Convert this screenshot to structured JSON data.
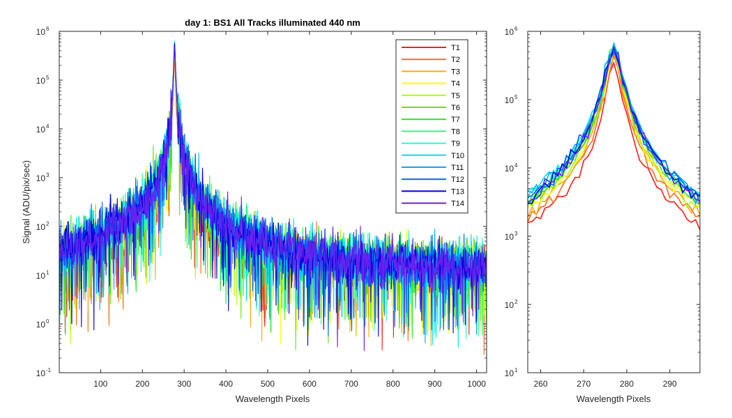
{
  "chart_data": [
    {
      "type": "line",
      "title": "day 1: BS1   All Tracks illuminated   440 nm",
      "xlabel": "Wavelength Pixels",
      "ylabel": "Signal (ADU/pix/sec)",
      "xlim": [
        1,
        1024
      ],
      "ylim": [
        0.1,
        1000000
      ],
      "yscale": "log",
      "xticks": [
        100,
        200,
        300,
        400,
        500,
        600,
        700,
        800,
        900,
        1000
      ],
      "yticks": [
        0.1,
        1,
        10,
        100,
        1000,
        10000,
        100000,
        1000000
      ],
      "ytick_mantissa": "10",
      "ytick_exponents": [
        "-1",
        "0",
        "1",
        "2",
        "3",
        "4",
        "5",
        "6"
      ],
      "legend": "top-right",
      "grid": false,
      "peak": {
        "x": 277,
        "value": 600000
      },
      "series": [
        {
          "name": "T1",
          "color": "#ff1a1a",
          "peak": 340000
        },
        {
          "name": "T2",
          "color": "#ff6a1a",
          "peak": 420000
        },
        {
          "name": "T3",
          "color": "#ffaa00",
          "peak": 480000
        },
        {
          "name": "T4",
          "color": "#ffff00",
          "peak": 520000
        },
        {
          "name": "T5",
          "color": "#b0ff00",
          "peak": 540000
        },
        {
          "name": "T6",
          "color": "#66e600",
          "peak": 560000
        },
        {
          "name": "T7",
          "color": "#22e622",
          "peak": 580000
        },
        {
          "name": "T8",
          "color": "#22ff88",
          "peak": 600000
        },
        {
          "name": "T9",
          "color": "#22ffcc",
          "peak": 620000
        },
        {
          "name": "T10",
          "color": "#00e6e6",
          "peak": 640000
        },
        {
          "name": "T11",
          "color": "#00aaff",
          "peak": 600000
        },
        {
          "name": "T12",
          "color": "#0066ee",
          "peak": 560000
        },
        {
          "name": "T13",
          "color": "#0000dd",
          "peak": 520000
        },
        {
          "name": "T14",
          "color": "#6622ee",
          "peak": 480000
        }
      ]
    },
    {
      "type": "line",
      "xlabel": "Wavelength Pixels",
      "ylabel": "",
      "xlim": [
        257,
        297
      ],
      "ylim": [
        10,
        1000000
      ],
      "yscale": "log",
      "xticks": [
        260,
        270,
        280,
        290
      ],
      "yticks": [
        10,
        100,
        1000,
        10000,
        100000,
        1000000
      ],
      "ytick_mantissa": "10",
      "ytick_exponents": [
        "1",
        "2",
        "3",
        "4",
        "5",
        "6"
      ],
      "grid": false,
      "peak": {
        "x": 277
      }
    }
  ]
}
